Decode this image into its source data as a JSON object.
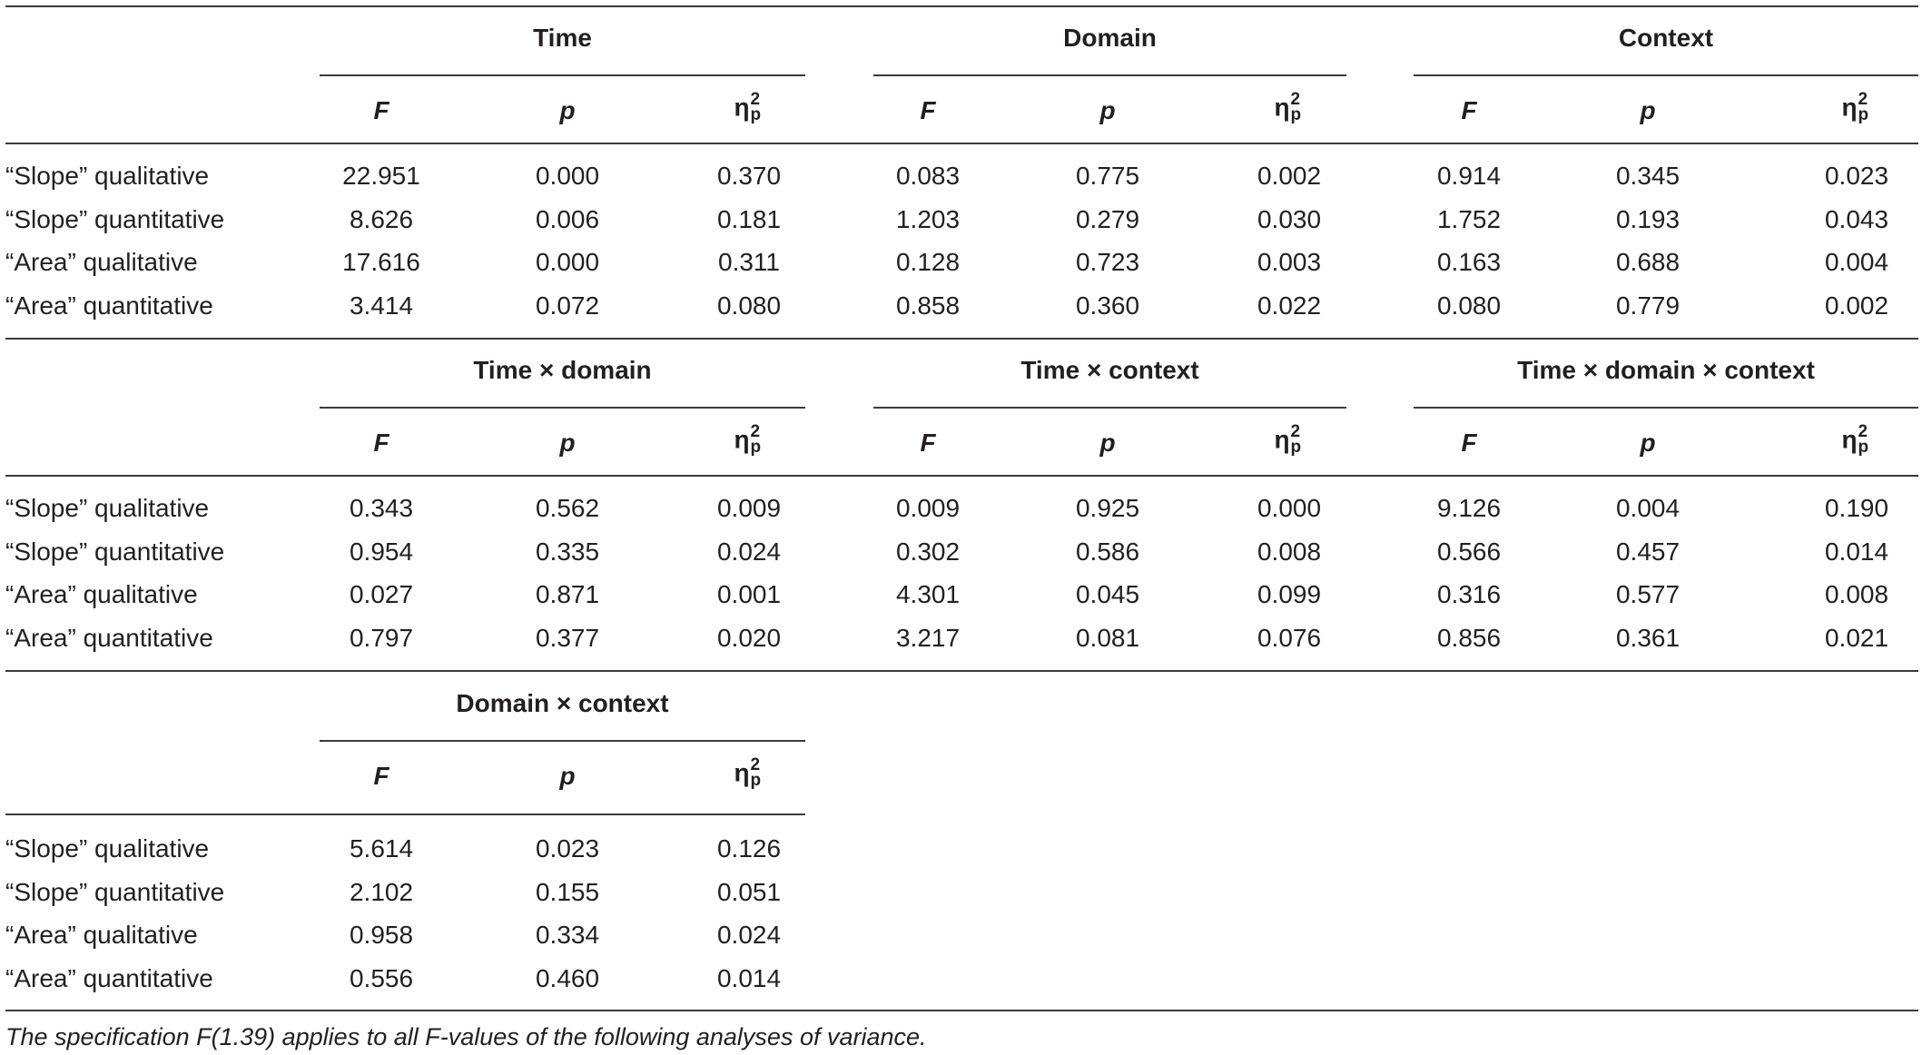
{
  "row_labels": [
    "“Slope” qualitative",
    "“Slope” quantitative",
    "“Area” qualitative",
    "“Area” quantitative"
  ],
  "column_headers": {
    "f": "F",
    "p": "p",
    "eta_symbol": "η",
    "eta_sup": "2",
    "eta_sub": "p"
  },
  "sections": [
    {
      "groups": [
        {
          "title": "Time",
          "rows": [
            [
              "22.951",
              "0.000",
              "0.370"
            ],
            [
              "8.626",
              "0.006",
              "0.181"
            ],
            [
              "17.616",
              "0.000",
              "0.311"
            ],
            [
              "3.414",
              "0.072",
              "0.080"
            ]
          ]
        },
        {
          "title": "Domain",
          "rows": [
            [
              "0.083",
              "0.775",
              "0.002"
            ],
            [
              "1.203",
              "0.279",
              "0.030"
            ],
            [
              "0.128",
              "0.723",
              "0.003"
            ],
            [
              "0.858",
              "0.360",
              "0.022"
            ]
          ]
        },
        {
          "title": "Context",
          "rows": [
            [
              "0.914",
              "0.345",
              "0.023"
            ],
            [
              "1.752",
              "0.193",
              "0.043"
            ],
            [
              "0.163",
              "0.688",
              "0.004"
            ],
            [
              "0.080",
              "0.779",
              "0.002"
            ]
          ]
        }
      ]
    },
    {
      "groups": [
        {
          "title": "Time × domain",
          "rows": [
            [
              "0.343",
              "0.562",
              "0.009"
            ],
            [
              "0.954",
              "0.335",
              "0.024"
            ],
            [
              "0.027",
              "0.871",
              "0.001"
            ],
            [
              "0.797",
              "0.377",
              "0.020"
            ]
          ]
        },
        {
          "title": "Time × context",
          "rows": [
            [
              "0.009",
              "0.925",
              "0.000"
            ],
            [
              "0.302",
              "0.586",
              "0.008"
            ],
            [
              "4.301",
              "0.045",
              "0.099"
            ],
            [
              "3.217",
              "0.081",
              "0.076"
            ]
          ]
        },
        {
          "title": "Time × domain × context",
          "rows": [
            [
              "9.126",
              "0.004",
              "0.190"
            ],
            [
              "0.566",
              "0.457",
              "0.014"
            ],
            [
              "0.316",
              "0.577",
              "0.008"
            ],
            [
              "0.856",
              "0.361",
              "0.021"
            ]
          ]
        }
      ]
    },
    {
      "groups": [
        {
          "title": "Domain × context",
          "rows": [
            [
              "5.614",
              "0.023",
              "0.126"
            ],
            [
              "2.102",
              "0.155",
              "0.051"
            ],
            [
              "0.958",
              "0.334",
              "0.024"
            ],
            [
              "0.556",
              "0.460",
              "0.014"
            ]
          ]
        }
      ]
    }
  ],
  "footnote": "The specification F(1.39) applies to all F-values of the following analyses of variance."
}
